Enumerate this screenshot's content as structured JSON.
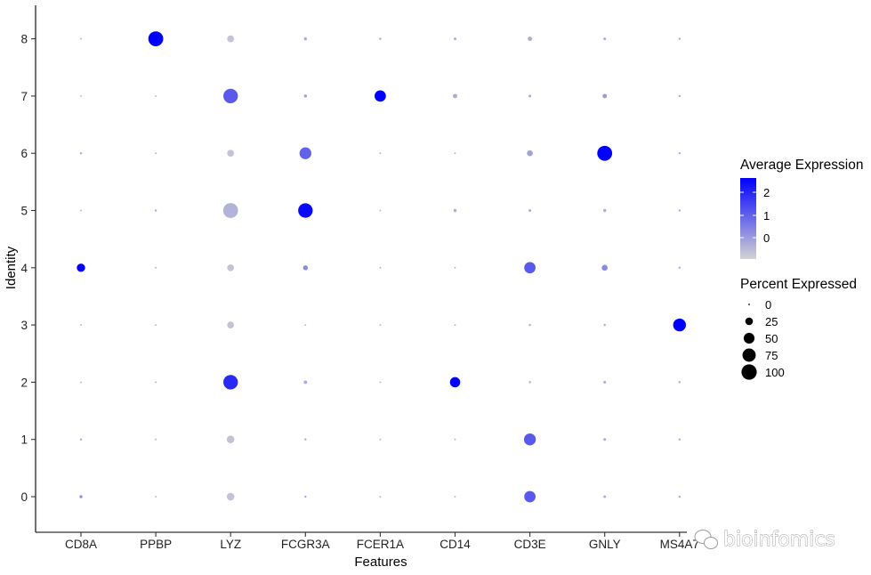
{
  "chart_data": {
    "type": "scatter",
    "subtype": "dot-plot",
    "xlabel": "Features",
    "ylabel": "Identity",
    "x_categories": [
      "CD8A",
      "PPBP",
      "LYZ",
      "FCGR3A",
      "FCER1A",
      "CD14",
      "CD3E",
      "GNLY",
      "MS4A7"
    ],
    "y_categories": [
      "0",
      "1",
      "2",
      "3",
      "4",
      "5",
      "6",
      "7",
      "8"
    ],
    "grid": false,
    "color_scale": {
      "low": "#d3d3d3",
      "high": "#0000ff"
    },
    "legends": {
      "color": {
        "title": "Average Expression",
        "ticks": [
          "2",
          "1",
          "0"
        ],
        "position": "right"
      },
      "size": {
        "title": "Percent Expressed",
        "values": [
          0,
          25,
          50,
          75,
          100
        ],
        "labels": [
          "0",
          "25",
          "50",
          "75",
          "100"
        ],
        "position": "right"
      }
    },
    "points": [
      {
        "feature": "CD8A",
        "identity": "0",
        "pct": 4,
        "avg_exp": 0.3
      },
      {
        "feature": "CD8A",
        "identity": "1",
        "pct": 2,
        "avg_exp": 0
      },
      {
        "feature": "CD8A",
        "identity": "2",
        "pct": 1,
        "avg_exp": 0
      },
      {
        "feature": "CD8A",
        "identity": "3",
        "pct": 1,
        "avg_exp": 0
      },
      {
        "feature": "CD8A",
        "identity": "4",
        "pct": 30,
        "avg_exp": 2.5
      },
      {
        "feature": "CD8A",
        "identity": "5",
        "pct": 1,
        "avg_exp": 0
      },
      {
        "feature": "CD8A",
        "identity": "6",
        "pct": 2,
        "avg_exp": 0
      },
      {
        "feature": "CD8A",
        "identity": "7",
        "pct": 1,
        "avg_exp": 0
      },
      {
        "feature": "CD8A",
        "identity": "8",
        "pct": 1,
        "avg_exp": 0
      },
      {
        "feature": "PPBP",
        "identity": "0",
        "pct": 1,
        "avg_exp": 0
      },
      {
        "feature": "PPBP",
        "identity": "1",
        "pct": 1,
        "avg_exp": 0
      },
      {
        "feature": "PPBP",
        "identity": "2",
        "pct": 1,
        "avg_exp": 0
      },
      {
        "feature": "PPBP",
        "identity": "3",
        "pct": 1,
        "avg_exp": 0
      },
      {
        "feature": "PPBP",
        "identity": "4",
        "pct": 1,
        "avg_exp": 0
      },
      {
        "feature": "PPBP",
        "identity": "5",
        "pct": 2,
        "avg_exp": 0
      },
      {
        "feature": "PPBP",
        "identity": "6",
        "pct": 1,
        "avg_exp": 0
      },
      {
        "feature": "PPBP",
        "identity": "7",
        "pct": 1,
        "avg_exp": 0
      },
      {
        "feature": "PPBP",
        "identity": "8",
        "pct": 95,
        "avg_exp": 2.5
      },
      {
        "feature": "LYZ",
        "identity": "0",
        "pct": 25,
        "avg_exp": -0.3
      },
      {
        "feature": "LYZ",
        "identity": "1",
        "pct": 25,
        "avg_exp": -0.3
      },
      {
        "feature": "LYZ",
        "identity": "2",
        "pct": 90,
        "avg_exp": 1.6
      },
      {
        "feature": "LYZ",
        "identity": "3",
        "pct": 20,
        "avg_exp": -0.3
      },
      {
        "feature": "LYZ",
        "identity": "4",
        "pct": 20,
        "avg_exp": -0.3
      },
      {
        "feature": "LYZ",
        "identity": "5",
        "pct": 95,
        "avg_exp": -0.1
      },
      {
        "feature": "LYZ",
        "identity": "6",
        "pct": 20,
        "avg_exp": -0.3
      },
      {
        "feature": "LYZ",
        "identity": "7",
        "pct": 90,
        "avg_exp": 1.0
      },
      {
        "feature": "LYZ",
        "identity": "8",
        "pct": 20,
        "avg_exp": -0.3
      },
      {
        "feature": "FCGR3A",
        "identity": "0",
        "pct": 2,
        "avg_exp": 0
      },
      {
        "feature": "FCGR3A",
        "identity": "1",
        "pct": 2,
        "avg_exp": 0
      },
      {
        "feature": "FCGR3A",
        "identity": "2",
        "pct": 5,
        "avg_exp": 0
      },
      {
        "feature": "FCGR3A",
        "identity": "3",
        "pct": 1,
        "avg_exp": 0
      },
      {
        "feature": "FCGR3A",
        "identity": "4",
        "pct": 10,
        "avg_exp": 0.4
      },
      {
        "feature": "FCGR3A",
        "identity": "5",
        "pct": 90,
        "avg_exp": 2.0
      },
      {
        "feature": "FCGR3A",
        "identity": "6",
        "pct": 60,
        "avg_exp": 0.9
      },
      {
        "feature": "FCGR3A",
        "identity": "7",
        "pct": 4,
        "avg_exp": 0.1
      },
      {
        "feature": "FCGR3A",
        "identity": "8",
        "pct": 4,
        "avg_exp": 0
      },
      {
        "feature": "FCER1A",
        "identity": "0",
        "pct": 1,
        "avg_exp": 0
      },
      {
        "feature": "FCER1A",
        "identity": "1",
        "pct": 1,
        "avg_exp": 0
      },
      {
        "feature": "FCER1A",
        "identity": "2",
        "pct": 1,
        "avg_exp": 0
      },
      {
        "feature": "FCER1A",
        "identity": "3",
        "pct": 1,
        "avg_exp": 0
      },
      {
        "feature": "FCER1A",
        "identity": "4",
        "pct": 1,
        "avg_exp": 0
      },
      {
        "feature": "FCER1A",
        "identity": "5",
        "pct": 1,
        "avg_exp": 0
      },
      {
        "feature": "FCER1A",
        "identity": "6",
        "pct": 1,
        "avg_exp": 0
      },
      {
        "feature": "FCER1A",
        "identity": "7",
        "pct": 55,
        "avg_exp": 2.5
      },
      {
        "feature": "FCER1A",
        "identity": "8",
        "pct": 2,
        "avg_exp": 0
      },
      {
        "feature": "CD14",
        "identity": "0",
        "pct": 1,
        "avg_exp": 0
      },
      {
        "feature": "CD14",
        "identity": "1",
        "pct": 1,
        "avg_exp": 0
      },
      {
        "feature": "CD14",
        "identity": "2",
        "pct": 45,
        "avg_exp": 2.5
      },
      {
        "feature": "CD14",
        "identity": "3",
        "pct": 1,
        "avg_exp": 0
      },
      {
        "feature": "CD14",
        "identity": "4",
        "pct": 1,
        "avg_exp": 0
      },
      {
        "feature": "CD14",
        "identity": "5",
        "pct": 4,
        "avg_exp": 0
      },
      {
        "feature": "CD14",
        "identity": "6",
        "pct": 1,
        "avg_exp": 0
      },
      {
        "feature": "CD14",
        "identity": "7",
        "pct": 8,
        "avg_exp": 0
      },
      {
        "feature": "CD14",
        "identity": "8",
        "pct": 3,
        "avg_exp": 0
      },
      {
        "feature": "CD3E",
        "identity": "0",
        "pct": 55,
        "avg_exp": 1.0
      },
      {
        "feature": "CD3E",
        "identity": "1",
        "pct": 60,
        "avg_exp": 1.0
      },
      {
        "feature": "CD3E",
        "identity": "2",
        "pct": 2,
        "avg_exp": 0
      },
      {
        "feature": "CD3E",
        "identity": "3",
        "pct": 2,
        "avg_exp": 0
      },
      {
        "feature": "CD3E",
        "identity": "4",
        "pct": 55,
        "avg_exp": 1.0
      },
      {
        "feature": "CD3E",
        "identity": "5",
        "pct": 3,
        "avg_exp": 0
      },
      {
        "feature": "CD3E",
        "identity": "6",
        "pct": 15,
        "avg_exp": 0.1
      },
      {
        "feature": "CD3E",
        "identity": "7",
        "pct": 3,
        "avg_exp": 0
      },
      {
        "feature": "CD3E",
        "identity": "8",
        "pct": 8,
        "avg_exp": 0
      },
      {
        "feature": "GNLY",
        "identity": "0",
        "pct": 3,
        "avg_exp": 0
      },
      {
        "feature": "GNLY",
        "identity": "1",
        "pct": 3,
        "avg_exp": 0
      },
      {
        "feature": "GNLY",
        "identity": "2",
        "pct": 3,
        "avg_exp": 0
      },
      {
        "feature": "GNLY",
        "identity": "3",
        "pct": 2,
        "avg_exp": 0
      },
      {
        "feature": "GNLY",
        "identity": "4",
        "pct": 15,
        "avg_exp": 0.4
      },
      {
        "feature": "GNLY",
        "identity": "5",
        "pct": 4,
        "avg_exp": 0
      },
      {
        "feature": "GNLY",
        "identity": "6",
        "pct": 95,
        "avg_exp": 2.5
      },
      {
        "feature": "GNLY",
        "identity": "7",
        "pct": 8,
        "avg_exp": 0.2
      },
      {
        "feature": "GNLY",
        "identity": "8",
        "pct": 3,
        "avg_exp": 0
      },
      {
        "feature": "MS4A7",
        "identity": "0",
        "pct": 2,
        "avg_exp": 0
      },
      {
        "feature": "MS4A7",
        "identity": "1",
        "pct": 2,
        "avg_exp": 0
      },
      {
        "feature": "MS4A7",
        "identity": "2",
        "pct": 2,
        "avg_exp": 0
      },
      {
        "feature": "MS4A7",
        "identity": "3",
        "pct": 70,
        "avg_exp": 2.5
      },
      {
        "feature": "MS4A7",
        "identity": "4",
        "pct": 2,
        "avg_exp": 0
      },
      {
        "feature": "MS4A7",
        "identity": "5",
        "pct": 2,
        "avg_exp": 0
      },
      {
        "feature": "MS4A7",
        "identity": "6",
        "pct": 2,
        "avg_exp": 0
      },
      {
        "feature": "MS4A7",
        "identity": "7",
        "pct": 2,
        "avg_exp": 0
      },
      {
        "feature": "MS4A7",
        "identity": "8",
        "pct": 2,
        "avg_exp": 0
      }
    ]
  },
  "watermark": {
    "text": "bioinfomics",
    "icon": "wechat-logo-icon"
  }
}
